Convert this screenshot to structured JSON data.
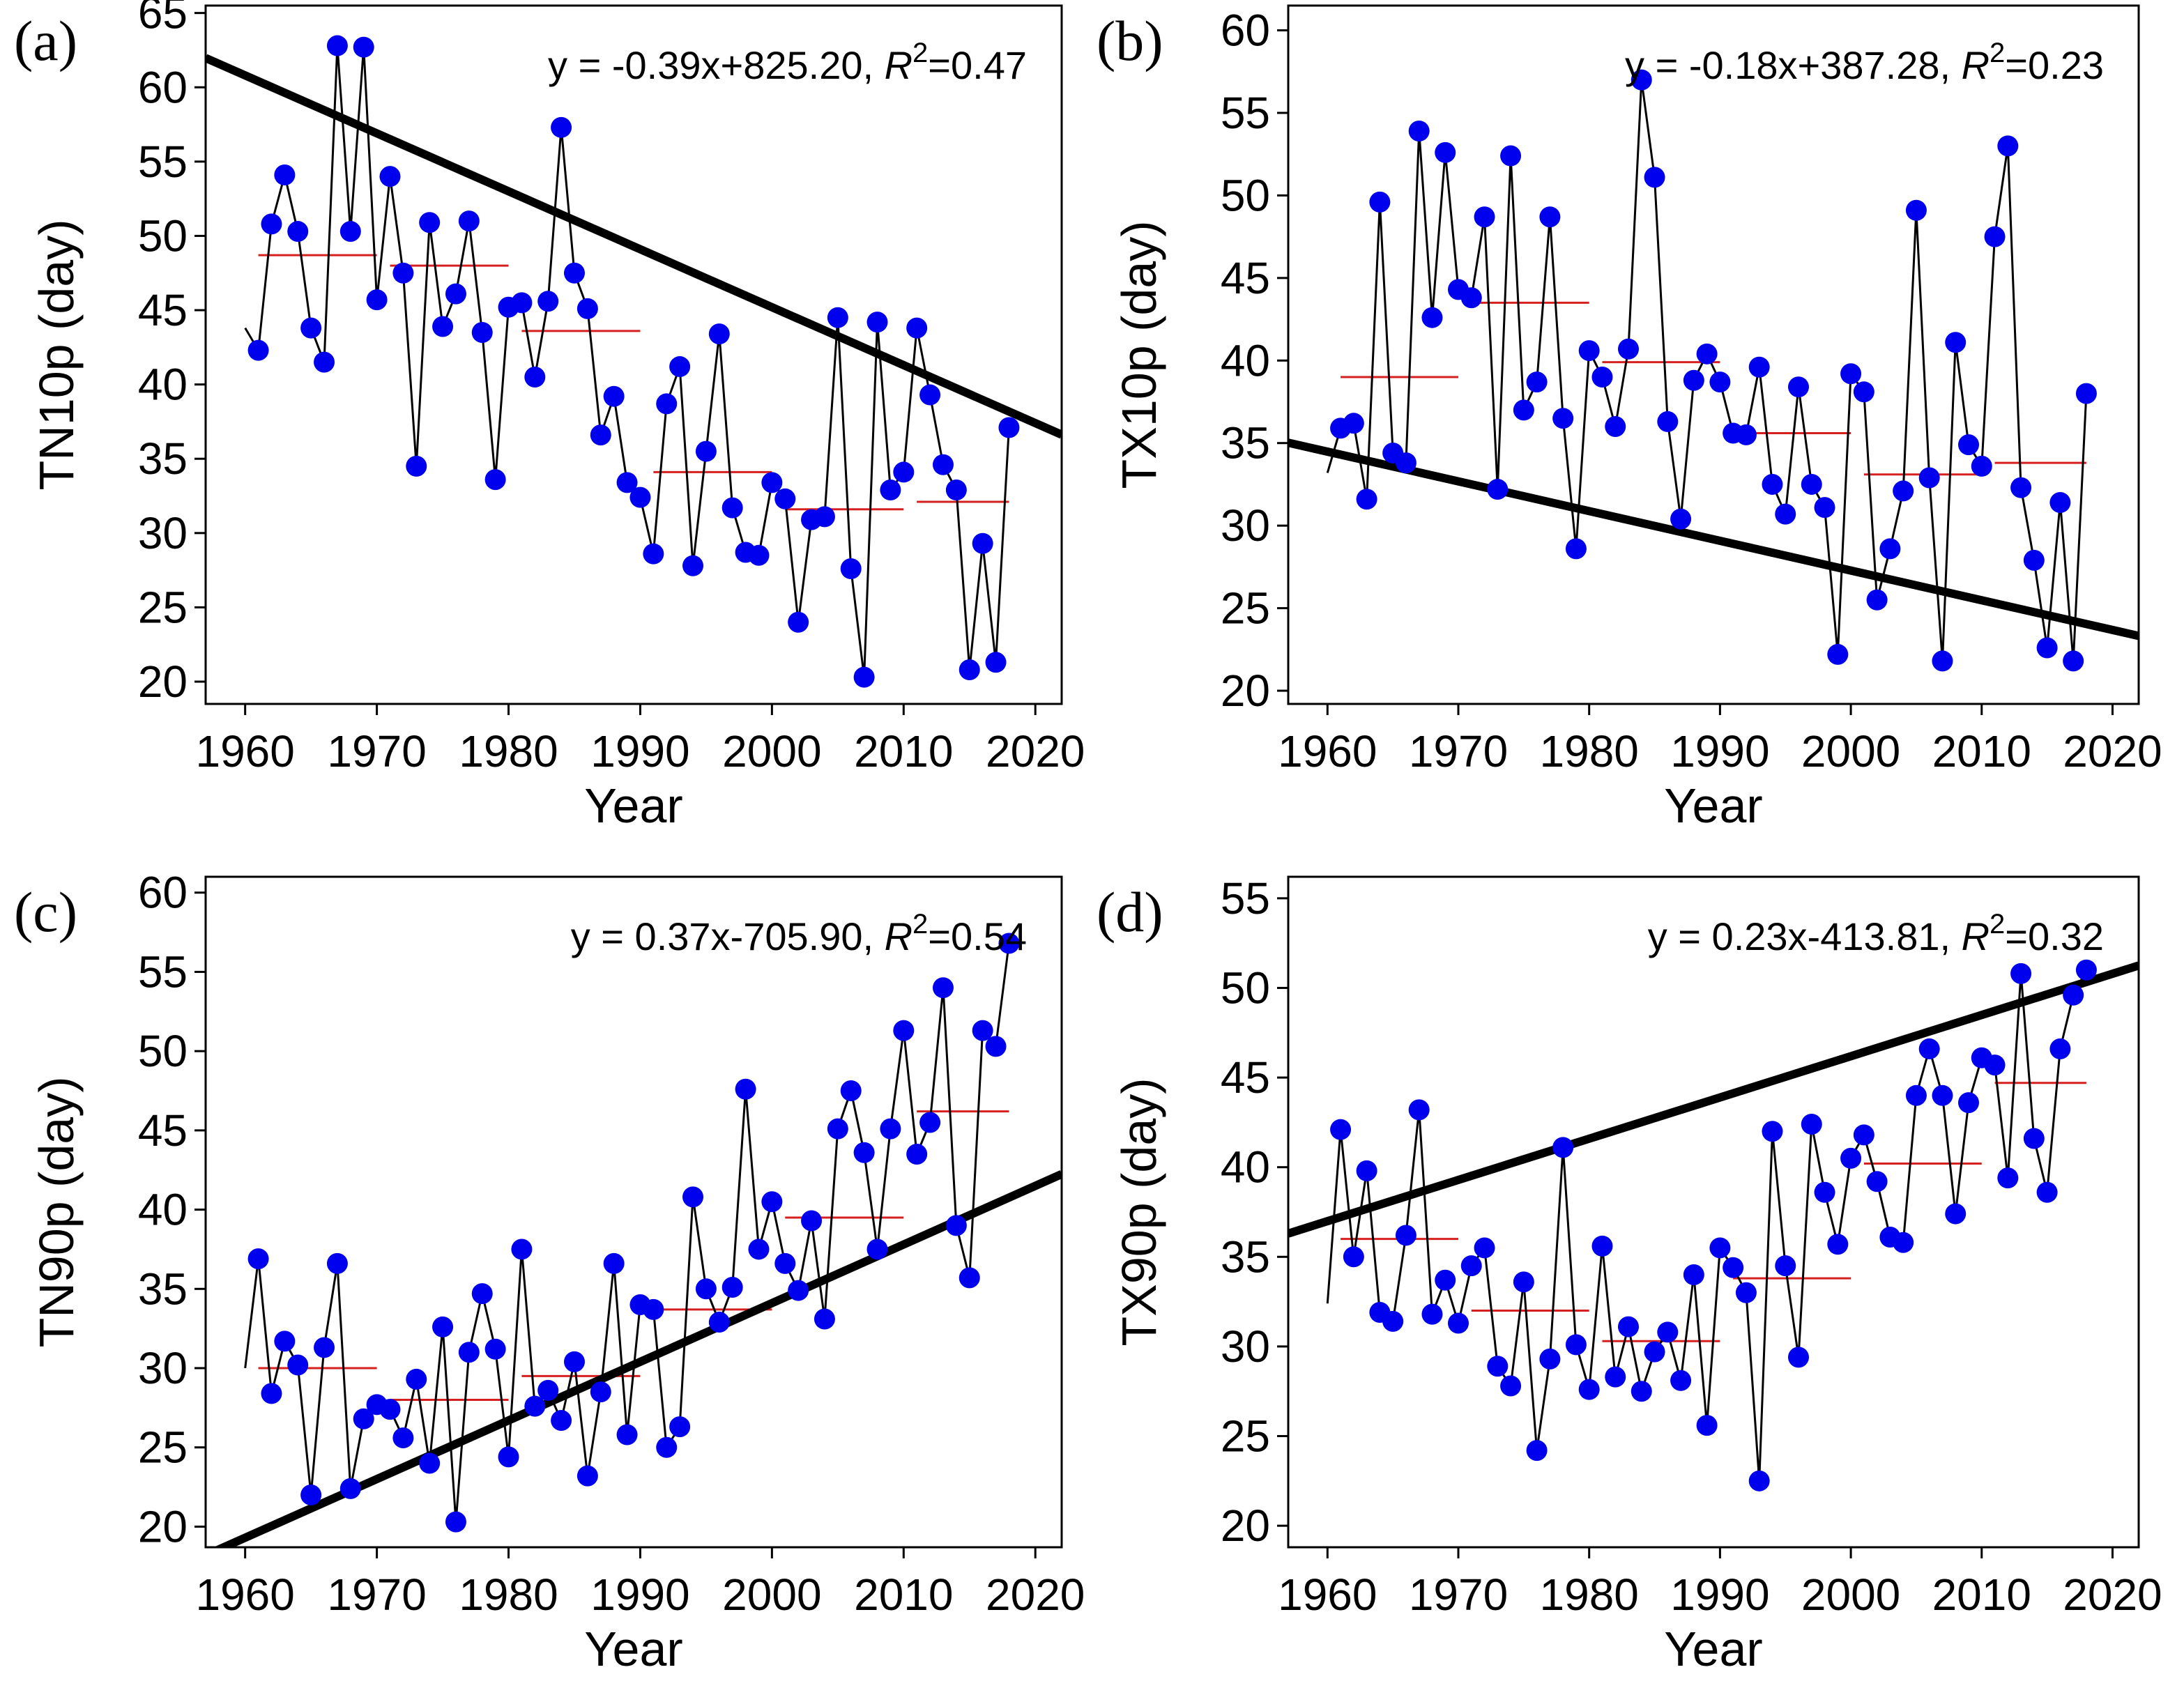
{
  "chart_data": [
    {
      "type": "line",
      "panel_label": "(a)",
      "title": "",
      "xlabel": "Year",
      "ylabel": "TN10p (day)",
      "xlim": [
        1957,
        2022
      ],
      "ylim": [
        18.5,
        65.5
      ],
      "xticks": [
        1960,
        1970,
        1980,
        1990,
        2000,
        2010,
        2020
      ],
      "yticks": [
        20,
        25,
        30,
        35,
        40,
        45,
        50,
        55,
        60,
        65
      ],
      "equation": {
        "prefix": "y = -0.39x+825.20, ",
        "r2_symbol": "R",
        "r2_sup": "2",
        "r2_value": "=0.47"
      },
      "trend": {
        "slope": -0.39,
        "intercept": 825.2
      },
      "x": [
        1960,
        1961,
        1962,
        1963,
        1964,
        1965,
        1966,
        1967,
        1968,
        1969,
        1970,
        1971,
        1972,
        1973,
        1974,
        1975,
        1976,
        1977,
        1978,
        1979,
        1980,
        1981,
        1982,
        1983,
        1984,
        1985,
        1986,
        1987,
        1988,
        1989,
        1990,
        1991,
        1992,
        1993,
        1994,
        1995,
        1996,
        1997,
        1998,
        1999,
        2000,
        2001,
        2002,
        2003,
        2004,
        2005,
        2006,
        2007,
        2008,
        2009,
        2010,
        2011,
        2012,
        2013,
        2014,
        2015,
        2016,
        2017,
        2018
      ],
      "y": [
        43.8,
        42.3,
        50.8,
        54.1,
        50.3,
        43.8,
        41.5,
        62.8,
        50.3,
        62.7,
        45.7,
        54.0,
        47.5,
        34.5,
        50.9,
        43.9,
        46.1,
        51.0,
        43.5,
        33.6,
        45.2,
        45.5,
        40.5,
        45.6,
        57.3,
        47.5,
        45.1,
        36.6,
        39.2,
        33.4,
        32.4,
        28.6,
        38.7,
        41.2,
        27.8,
        35.5,
        43.4,
        31.7,
        28.7,
        28.5,
        33.4,
        32.3,
        24.0,
        30.9,
        31.1,
        44.5,
        27.6,
        20.3,
        44.2,
        32.9,
        34.1,
        43.8,
        39.3,
        34.6,
        32.9,
        20.8,
        29.3,
        21.3,
        37.1
      ],
      "marker_start": 1,
      "decadal_means": [
        {
          "start": 1961,
          "end": 1970,
          "value": 48.7
        },
        {
          "start": 1971,
          "end": 1980,
          "value": 48.0
        },
        {
          "start": 1981,
          "end": 1990,
          "value": 43.6
        },
        {
          "start": 1991,
          "end": 2000,
          "value": 34.1
        },
        {
          "start": 2001,
          "end": 2010,
          "value": 31.6
        },
        {
          "start": 2011,
          "end": 2018,
          "value": 32.1
        }
      ]
    },
    {
      "type": "line",
      "panel_label": "(b)",
      "title": "",
      "xlabel": "Year",
      "ylabel": "TX10p (day)",
      "xlim": [
        1957,
        2022
      ],
      "ylim": [
        19.2,
        61.5
      ],
      "xticks": [
        1960,
        1970,
        1980,
        1990,
        2000,
        2010,
        2020
      ],
      "yticks": [
        20,
        25,
        30,
        35,
        40,
        45,
        50,
        55,
        60
      ],
      "equation": {
        "prefix": "y = -0.18x+387.28, ",
        "r2_symbol": "R",
        "r2_sup": "2",
        "r2_value": "=0.23"
      },
      "trend": {
        "slope": -0.18,
        "intercept": 387.28
      },
      "x": [
        1960,
        1961,
        1962,
        1963,
        1964,
        1965,
        1966,
        1967,
        1968,
        1969,
        1970,
        1971,
        1972,
        1973,
        1974,
        1975,
        1976,
        1977,
        1978,
        1979,
        1980,
        1981,
        1982,
        1983,
        1984,
        1985,
        1986,
        1987,
        1988,
        1989,
        1990,
        1991,
        1992,
        1993,
        1994,
        1995,
        1996,
        1997,
        1998,
        1999,
        2000,
        2001,
        2002,
        2003,
        2004,
        2005,
        2006,
        2007,
        2008,
        2009,
        2010,
        2011,
        2012,
        2013,
        2014,
        2015,
        2016,
        2017,
        2018
      ],
      "y": [
        33.2,
        35.9,
        36.2,
        31.6,
        49.6,
        34.4,
        33.8,
        53.9,
        42.6,
        52.6,
        44.3,
        43.8,
        48.7,
        32.2,
        52.4,
        37.0,
        38.7,
        48.7,
        36.5,
        28.6,
        40.6,
        39.0,
        36.0,
        40.7,
        57.0,
        51.1,
        36.3,
        30.4,
        38.8,
        40.4,
        38.7,
        35.6,
        35.5,
        39.6,
        32.5,
        30.7,
        38.4,
        32.5,
        31.1,
        22.2,
        39.2,
        38.1,
        25.5,
        28.6,
        32.1,
        49.1,
        32.9,
        21.8,
        41.1,
        34.9,
        33.6,
        47.5,
        53.0,
        32.3,
        27.9,
        22.6,
        31.4,
        21.8,
        38.0
      ],
      "marker_start": 1,
      "decadal_means": [
        {
          "start": 1961,
          "end": 1970,
          "value": 39.0
        },
        {
          "start": 1971,
          "end": 1980,
          "value": 43.5
        },
        {
          "start": 1981,
          "end": 1990,
          "value": 39.9
        },
        {
          "start": 1991,
          "end": 2000,
          "value": 35.6
        },
        {
          "start": 2001,
          "end": 2010,
          "value": 33.1
        },
        {
          "start": 2011,
          "end": 2018,
          "value": 33.8
        }
      ]
    },
    {
      "type": "line",
      "panel_label": "(c)",
      "title": "",
      "xlabel": "Year",
      "ylabel": "TN90p (day)",
      "xlim": [
        1957,
        2022
      ],
      "ylim": [
        18.7,
        61.0
      ],
      "xticks": [
        1960,
        1970,
        1980,
        1990,
        2000,
        2010,
        2020
      ],
      "yticks": [
        20,
        25,
        30,
        35,
        40,
        45,
        50,
        55,
        60
      ],
      "equation": {
        "prefix": "y = 0.37x-705.90, ",
        "r2_symbol": "R",
        "r2_sup": "2",
        "r2_value": "=0.54"
      },
      "trend": {
        "slope": 0.37,
        "intercept": -705.9
      },
      "x": [
        1960,
        1961,
        1962,
        1963,
        1964,
        1965,
        1966,
        1967,
        1968,
        1969,
        1970,
        1971,
        1972,
        1973,
        1974,
        1975,
        1976,
        1977,
        1978,
        1979,
        1980,
        1981,
        1982,
        1983,
        1984,
        1985,
        1986,
        1987,
        1988,
        1989,
        1990,
        1991,
        1992,
        1993,
        1994,
        1995,
        1996,
        1997,
        1998,
        1999,
        2000,
        2001,
        2002,
        2003,
        2004,
        2005,
        2006,
        2007,
        2008,
        2009,
        2010,
        2011,
        2012,
        2013,
        2014,
        2015,
        2016,
        2017,
        2018
      ],
      "y": [
        30.0,
        36.9,
        28.4,
        31.7,
        30.2,
        22.0,
        31.3,
        36.6,
        22.4,
        26.8,
        27.7,
        27.4,
        25.6,
        29.3,
        24.0,
        32.6,
        20.3,
        31.0,
        34.7,
        31.2,
        24.4,
        37.5,
        27.6,
        28.6,
        26.7,
        30.4,
        23.2,
        28.5,
        36.6,
        25.8,
        34.0,
        33.7,
        25.0,
        26.3,
        40.8,
        35.0,
        32.9,
        35.1,
        47.6,
        37.5,
        40.5,
        36.6,
        34.9,
        39.3,
        33.1,
        45.1,
        47.5,
        43.6,
        37.5,
        45.1,
        51.3,
        43.5,
        45.5,
        54.0,
        39.0,
        35.7,
        51.3,
        50.3,
        56.8
      ],
      "marker_start": 1,
      "decadal_means": [
        {
          "start": 1961,
          "end": 1970,
          "value": 30.0
        },
        {
          "start": 1971,
          "end": 1980,
          "value": 28.0
        },
        {
          "start": 1981,
          "end": 1990,
          "value": 29.5
        },
        {
          "start": 1991,
          "end": 2000,
          "value": 33.7
        },
        {
          "start": 2001,
          "end": 2010,
          "value": 39.5
        },
        {
          "start": 2011,
          "end": 2018,
          "value": 46.2
        }
      ]
    },
    {
      "type": "line",
      "panel_label": "(d)",
      "title": "",
      "xlabel": "Year",
      "ylabel": "TX90p (day)",
      "xlim": [
        1957,
        2022
      ],
      "ylim": [
        18.8,
        56.2
      ],
      "xticks": [
        1960,
        1970,
        1980,
        1990,
        2000,
        2010,
        2020
      ],
      "yticks": [
        20,
        25,
        30,
        35,
        40,
        45,
        50,
        55
      ],
      "equation": {
        "prefix": "y = 0.23x-413.81, ",
        "r2_symbol": "R",
        "r2_sup": "2",
        "r2_value": "=0.32"
      },
      "trend": {
        "slope": 0.23,
        "intercept": -413.81
      },
      "x": [
        1960,
        1961,
        1962,
        1963,
        1964,
        1965,
        1966,
        1967,
        1968,
        1969,
        1970,
        1971,
        1972,
        1973,
        1974,
        1975,
        1976,
        1977,
        1978,
        1979,
        1980,
        1981,
        1982,
        1983,
        1984,
        1985,
        1986,
        1987,
        1988,
        1989,
        1990,
        1991,
        1992,
        1993,
        1994,
        1995,
        1996,
        1997,
        1998,
        1999,
        2000,
        2001,
        2002,
        2003,
        2004,
        2005,
        2006,
        2007,
        2008,
        2009,
        2010,
        2011,
        2012,
        2013,
        2014,
        2015,
        2016,
        2017,
        2018
      ],
      "y": [
        32.4,
        42.1,
        35.0,
        39.8,
        31.9,
        31.4,
        36.2,
        43.2,
        31.8,
        33.7,
        31.3,
        34.5,
        35.5,
        28.9,
        27.8,
        33.6,
        24.2,
        29.3,
        41.1,
        30.1,
        27.6,
        35.6,
        28.3,
        31.1,
        27.5,
        29.7,
        30.8,
        28.1,
        34.0,
        25.6,
        35.5,
        34.4,
        33.0,
        22.5,
        42.0,
        34.5,
        29.4,
        42.4,
        38.6,
        35.7,
        40.5,
        41.8,
        39.2,
        36.1,
        35.8,
        44.0,
        46.6,
        44.0,
        37.4,
        43.6,
        46.1,
        45.7,
        39.4,
        50.8,
        41.6,
        38.6,
        46.6,
        49.6,
        51.0
      ],
      "marker_start": 1,
      "decadal_means": [
        {
          "start": 1961,
          "end": 1970,
          "value": 36.0
        },
        {
          "start": 1971,
          "end": 1980,
          "value": 32.0
        },
        {
          "start": 1981,
          "end": 1990,
          "value": 30.3
        },
        {
          "start": 1991,
          "end": 2000,
          "value": 33.8
        },
        {
          "start": 2001,
          "end": 2010,
          "value": 40.2
        },
        {
          "start": 2011,
          "end": 2018,
          "value": 44.7
        }
      ]
    }
  ],
  "colors": {
    "series_line": "#000000",
    "marker": "#0000ee",
    "trend_line": "#000000",
    "decadal_mean": "#d62020",
    "axis": "#000000"
  }
}
